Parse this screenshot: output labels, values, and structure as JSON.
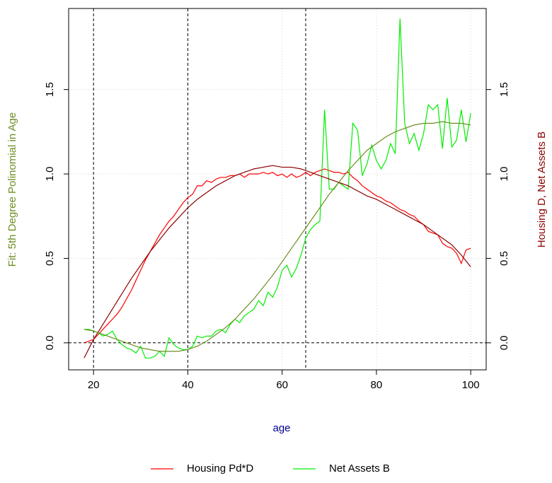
{
  "chart_data": {
    "type": "line",
    "xlabel": "age",
    "ylabel": "Fit: 5th Degree Polinomial in Age",
    "y2label": "Housing D, Net Assets B",
    "xlim": [
      14.72,
      103.28
    ],
    "xticks": [
      20,
      40,
      60,
      80,
      100
    ],
    "ylim": [
      -0.16,
      1.98
    ],
    "yticks": [
      {
        "value": 0,
        "label": "0.0"
      },
      0.5,
      {
        "value": 1,
        "label": "1.0"
      },
      1.5
    ],
    "y2lim": [
      -0.16,
      1.98
    ],
    "y2ticks": [
      {
        "value": 0,
        "label": "0.0"
      },
      0.5,
      {
        "value": 1,
        "label": "1.0"
      },
      1.5
    ],
    "grid": true,
    "vlines": [
      20,
      40,
      65
    ],
    "hlines": [
      0
    ],
    "x": [
      18,
      19,
      20,
      21,
      22,
      23,
      24,
      25,
      26,
      27,
      28,
      29,
      30,
      31,
      32,
      33,
      34,
      35,
      36,
      37,
      38,
      39,
      40,
      41,
      42,
      43,
      44,
      45,
      46,
      47,
      48,
      49,
      50,
      51,
      52,
      53,
      54,
      55,
      56,
      57,
      58,
      59,
      60,
      61,
      62,
      63,
      64,
      65,
      66,
      67,
      68,
      69,
      70,
      71,
      72,
      73,
      74,
      75,
      76,
      77,
      78,
      79,
      80,
      81,
      82,
      83,
      84,
      85,
      86,
      87,
      88,
      89,
      90,
      91,
      92,
      93,
      94,
      95,
      96,
      97,
      98,
      99,
      100
    ],
    "series": [
      {
        "name": "Housing Pd*D",
        "color": "#ff0000",
        "values": [
          0.0,
          0.01,
          0.02,
          0.05,
          0.08,
          0.11,
          0.14,
          0.17,
          0.21,
          0.26,
          0.31,
          0.37,
          0.43,
          0.49,
          0.54,
          0.59,
          0.64,
          0.68,
          0.72,
          0.75,
          0.79,
          0.83,
          0.86,
          0.88,
          0.93,
          0.93,
          0.96,
          0.95,
          0.97,
          0.98,
          0.98,
          0.99,
          0.99,
          1.0,
          0.98,
          1.0,
          1.0,
          1.0,
          1.01,
          1.0,
          1.01,
          0.99,
          1.0,
          0.98,
          1.0,
          0.98,
          0.99,
          1.01,
          0.99,
          1.01,
          1.02,
          1.03,
          1.02,
          1.01,
          1.01,
          1.0,
          1.01,
          0.98,
          0.96,
          0.93,
          0.91,
          0.89,
          0.87,
          0.86,
          0.84,
          0.83,
          0.81,
          0.79,
          0.78,
          0.76,
          0.75,
          0.72,
          0.7,
          0.66,
          0.65,
          0.64,
          0.59,
          0.57,
          0.56,
          0.53,
          0.47,
          0.55,
          0.56
        ]
      },
      {
        "name": "Net Assets B",
        "color": "#00ee00",
        "values": [
          0.08,
          0.08,
          0.07,
          0.06,
          0.04,
          0.05,
          0.07,
          0.02,
          -0.01,
          -0.03,
          -0.04,
          -0.06,
          -0.02,
          -0.09,
          -0.09,
          -0.08,
          -0.05,
          -0.08,
          0.03,
          -0.01,
          -0.03,
          -0.04,
          -0.04,
          -0.02,
          0.04,
          0.03,
          0.04,
          0.04,
          0.07,
          0.08,
          0.06,
          0.11,
          0.14,
          0.12,
          0.16,
          0.18,
          0.2,
          0.25,
          0.22,
          0.3,
          0.27,
          0.33,
          0.43,
          0.46,
          0.39,
          0.44,
          0.52,
          0.62,
          0.67,
          0.7,
          0.72,
          1.38,
          0.91,
          0.91,
          0.95,
          0.93,
          0.91,
          1.3,
          1.26,
          0.99,
          1.06,
          1.17,
          1.08,
          1.03,
          1.08,
          1.18,
          1.12,
          1.92,
          1.3,
          1.18,
          1.24,
          1.14,
          1.24,
          1.41,
          1.38,
          1.41,
          1.15,
          1.45,
          1.16,
          1.2,
          1.38,
          1.19,
          1.36
        ]
      }
    ],
    "fits": [
      {
        "color": "#8b0000",
        "x": [
          18,
          20,
          22,
          24,
          26,
          28,
          30,
          32,
          34,
          36,
          38,
          40,
          42,
          44,
          46,
          48,
          50,
          52,
          54,
          56,
          58,
          60,
          62,
          64,
          66,
          68,
          70,
          72,
          74,
          76,
          78,
          80,
          82,
          84,
          86,
          88,
          90,
          92,
          94,
          96,
          98,
          100
        ],
        "values": [
          -0.09,
          0.02,
          0.11,
          0.2,
          0.29,
          0.38,
          0.46,
          0.54,
          0.61,
          0.68,
          0.74,
          0.8,
          0.85,
          0.89,
          0.93,
          0.96,
          0.99,
          1.01,
          1.03,
          1.04,
          1.05,
          1.04,
          1.04,
          1.03,
          1.01,
          0.99,
          0.97,
          0.95,
          0.93,
          0.9,
          0.87,
          0.85,
          0.82,
          0.79,
          0.76,
          0.73,
          0.7,
          0.66,
          0.62,
          0.58,
          0.52,
          0.45
        ]
      },
      {
        "color": "#6b8e23",
        "x": [
          18,
          20,
          22,
          24,
          26,
          28,
          30,
          32,
          34,
          36,
          38,
          40,
          42,
          44,
          46,
          48,
          50,
          52,
          54,
          56,
          58,
          60,
          62,
          64,
          66,
          68,
          70,
          72,
          74,
          76,
          78,
          80,
          82,
          84,
          86,
          88,
          90,
          92,
          94,
          96,
          98,
          100
        ],
        "values": [
          0.08,
          0.07,
          0.05,
          0.03,
          0.01,
          -0.01,
          -0.03,
          -0.04,
          -0.05,
          -0.05,
          -0.05,
          -0.04,
          -0.02,
          0.01,
          0.05,
          0.09,
          0.14,
          0.2,
          0.26,
          0.33,
          0.4,
          0.48,
          0.56,
          0.64,
          0.72,
          0.8,
          0.88,
          0.95,
          1.02,
          1.08,
          1.14,
          1.18,
          1.22,
          1.25,
          1.27,
          1.29,
          1.3,
          1.3,
          1.31,
          1.3,
          1.3,
          1.29
        ]
      }
    ]
  }
}
